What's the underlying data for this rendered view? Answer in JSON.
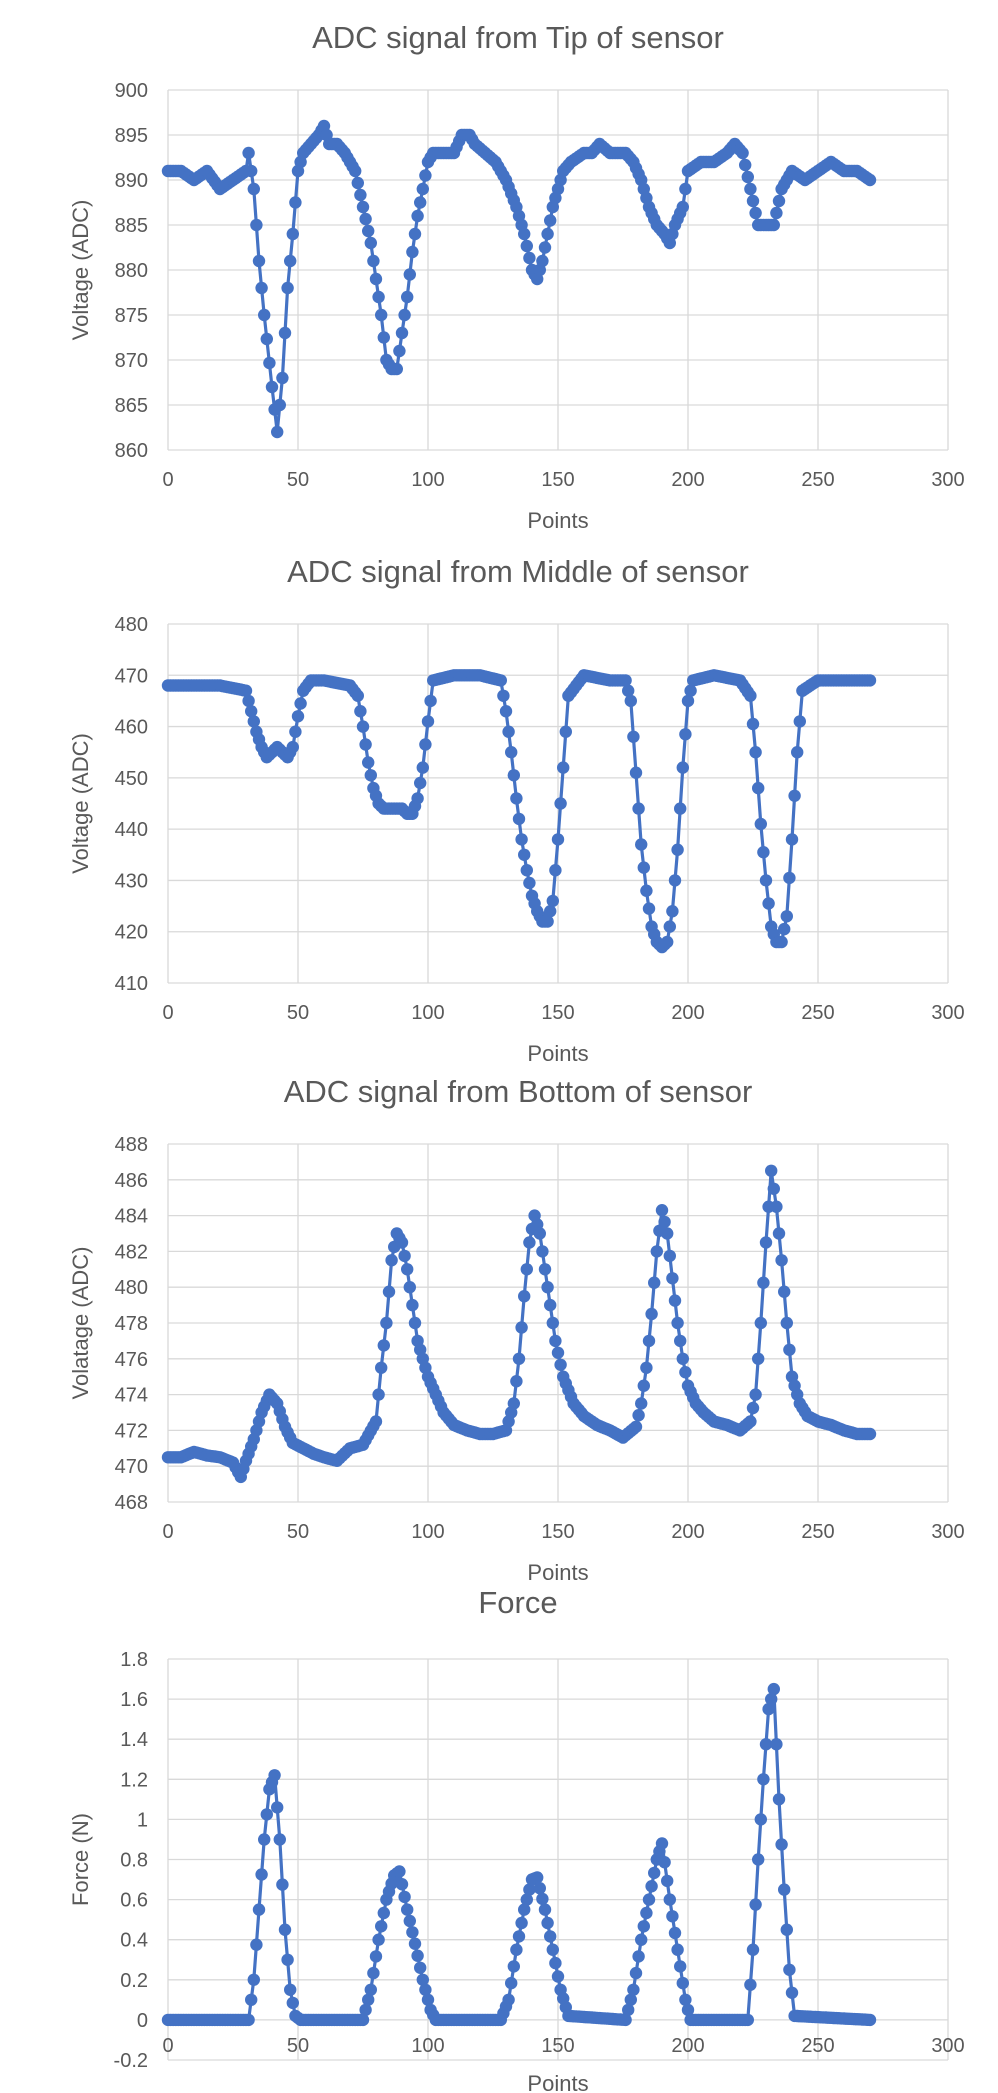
{
  "colors": {
    "series": "#4472C4",
    "grid": "#D9D9D9",
    "text": "#595959",
    "background": "#FFFFFF"
  },
  "chart_data": [
    {
      "type": "line",
      "title": "ADC signal from Tip of sensor",
      "xlabel": "Points",
      "ylabel": "Voltage (ADC)",
      "xlim": [
        0,
        300
      ],
      "ylim": [
        860,
        900
      ],
      "xticks": [
        "0",
        "50",
        "100",
        "150",
        "200",
        "250",
        "300"
      ],
      "yticks": [
        "860",
        "865",
        "870",
        "875",
        "880",
        "885",
        "890",
        "895",
        "900"
      ],
      "grid": true,
      "markers": true,
      "x_knots": [
        0,
        5,
        10,
        15,
        20,
        25,
        30,
        31,
        33,
        35,
        37,
        40,
        42,
        44,
        46,
        48,
        50,
        52,
        55,
        58,
        60,
        62,
        65,
        68,
        72,
        75,
        78,
        80,
        82,
        84,
        86,
        88,
        89,
        90,
        92,
        94,
        96,
        98,
        100,
        102,
        105,
        110,
        113,
        116,
        118,
        122,
        126,
        130,
        134,
        137,
        140,
        142,
        144,
        146,
        148,
        150,
        152,
        155,
        160,
        163,
        166,
        170,
        173,
        176,
        179,
        182,
        185,
        188,
        191,
        193,
        195,
        198,
        200,
        205,
        210,
        215,
        218,
        221,
        224,
        227,
        230,
        233,
        236,
        240,
        245,
        250,
        255,
        260,
        265,
        270
      ],
      "y_knots": [
        891,
        891,
        890,
        891,
        889,
        890,
        891,
        893,
        889,
        881,
        875,
        867,
        862,
        868,
        878,
        884,
        891,
        893,
        894,
        895,
        896,
        894,
        894,
        893,
        891,
        887,
        883,
        879,
        875,
        870,
        869,
        869,
        871,
        873,
        877,
        882,
        886,
        889,
        892,
        893,
        893,
        893,
        895,
        895,
        894,
        893,
        892,
        890,
        887,
        884,
        880,
        879,
        881,
        884,
        887,
        889,
        891,
        892,
        893,
        893,
        894,
        893,
        893,
        893,
        892,
        890,
        887,
        885,
        884,
        883,
        885,
        887,
        891,
        892,
        892,
        893,
        894,
        893,
        889,
        885,
        885,
        885,
        889,
        891,
        890,
        891,
        892,
        891,
        891,
        890
      ]
    },
    {
      "type": "line",
      "title": "ADC signal from Middle of sensor",
      "xlabel": "Points",
      "ylabel": "Voltage (ADC)",
      "xlim": [
        0,
        300
      ],
      "ylim": [
        410,
        480
      ],
      "xticks": [
        "0",
        "50",
        "100",
        "150",
        "200",
        "250",
        "300"
      ],
      "yticks": [
        "410",
        "420",
        "430",
        "440",
        "450",
        "460",
        "470",
        "480"
      ],
      "grid": true,
      "markers": true,
      "x_knots": [
        0,
        10,
        20,
        30,
        32,
        34,
        36,
        38,
        40,
        42,
        44,
        46,
        48,
        50,
        52,
        55,
        60,
        70,
        73,
        75,
        77,
        79,
        81,
        83,
        85,
        88,
        90,
        92,
        94,
        96,
        98,
        100,
        102,
        110,
        120,
        128,
        130,
        132,
        134,
        136,
        138,
        140,
        142,
        144,
        146,
        148,
        150,
        152,
        154,
        160,
        170,
        176,
        178,
        180,
        182,
        184,
        186,
        188,
        190,
        192,
        194,
        196,
        198,
        200,
        202,
        210,
        220,
        224,
        226,
        228,
        230,
        232,
        234,
        236,
        238,
        240,
        242,
        244,
        250,
        260,
        270
      ],
      "y_knots": [
        468,
        468,
        468,
        467,
        463,
        459,
        456,
        454,
        455,
        456,
        455,
        454,
        456,
        462,
        467,
        469,
        469,
        468,
        466,
        460,
        453,
        448,
        445,
        444,
        444,
        444,
        444,
        443,
        443,
        446,
        452,
        461,
        469,
        470,
        470,
        469,
        463,
        455,
        446,
        438,
        432,
        427,
        424,
        422,
        422,
        426,
        438,
        452,
        466,
        470,
        469,
        469,
        465,
        451,
        437,
        428,
        421,
        418,
        417,
        418,
        424,
        436,
        452,
        465,
        469,
        470,
        469,
        466,
        455,
        441,
        430,
        421,
        418,
        418,
        423,
        438,
        455,
        467,
        469,
        469,
        469
      ]
    },
    {
      "type": "line",
      "title": "ADC signal from Bottom of sensor",
      "xlabel": "Points",
      "ylabel": "Volatage (ADC)",
      "xlim": [
        0,
        300
      ],
      "ylim": [
        468,
        488
      ],
      "xticks": [
        "0",
        "50",
        "100",
        "150",
        "200",
        "250",
        "300"
      ],
      "yticks": [
        "468",
        "470",
        "472",
        "474",
        "476",
        "478",
        "480",
        "482",
        "484",
        "486",
        "488"
      ],
      "grid": true,
      "markers": true,
      "x_knots": [
        0,
        5,
        10,
        15,
        20,
        25,
        28,
        30,
        33,
        36,
        39,
        42,
        45,
        48,
        52,
        56,
        60,
        65,
        70,
        75,
        80,
        82,
        84,
        86,
        88,
        90,
        92,
        94,
        96,
        98,
        100,
        103,
        106,
        110,
        115,
        120,
        125,
        130,
        133,
        135,
        137,
        139,
        141,
        143,
        145,
        147,
        149,
        152,
        156,
        160,
        165,
        170,
        175,
        180,
        182,
        184,
        186,
        188,
        190,
        192,
        194,
        196,
        198,
        200,
        203,
        206,
        210,
        215,
        220,
        224,
        226,
        228,
        230,
        232,
        234,
        236,
        238,
        240,
        243,
        246,
        250,
        255,
        260,
        265,
        270
      ],
      "y_knots": [
        470.5,
        470.5,
        470.8,
        470.6,
        470.5,
        470.2,
        469.4,
        470.3,
        471.5,
        473.0,
        474.0,
        473.5,
        472.2,
        471.3,
        471.0,
        470.7,
        470.5,
        470.3,
        471.0,
        471.2,
        472.5,
        475.5,
        478.0,
        481.5,
        483.0,
        482.5,
        481.0,
        479.0,
        477.0,
        476.0,
        475.0,
        474.0,
        473.0,
        472.3,
        472.0,
        471.8,
        471.8,
        472.0,
        473.5,
        476.0,
        479.5,
        482.5,
        484.0,
        483.0,
        481.0,
        479.0,
        477.0,
        475.0,
        473.5,
        472.8,
        472.3,
        472.0,
        471.6,
        472.2,
        473.5,
        475.5,
        478.5,
        482.0,
        484.3,
        483.0,
        480.5,
        478.0,
        476.0,
        474.5,
        473.5,
        473.0,
        472.5,
        472.3,
        472.0,
        472.5,
        474.0,
        478.0,
        482.5,
        486.5,
        484.5,
        481.5,
        478.0,
        475.0,
        473.5,
        472.8,
        472.5,
        472.3,
        472.0,
        471.8,
        471.8
      ]
    },
    {
      "type": "line",
      "title": "Force",
      "xlabel": "Points",
      "ylabel": "Force (N)",
      "xlim": [
        0,
        300
      ],
      "ylim": [
        -0.2,
        1.8
      ],
      "xticks": [
        "0",
        "50",
        "100",
        "150",
        "200",
        "250",
        "300"
      ],
      "yticks": [
        "-0.2",
        "0",
        "0.2",
        "0.4",
        "0.6",
        "0.8",
        "1",
        "1.2",
        "1.4",
        "1.6",
        "1.8"
      ],
      "grid": true,
      "markers": true,
      "x_knots": [
        0,
        31,
        33,
        35,
        37,
        39,
        41,
        43,
        45,
        47,
        49,
        51,
        75,
        78,
        81,
        84,
        87,
        89,
        92,
        95,
        98,
        101,
        103,
        128,
        131,
        134,
        137,
        140,
        142,
        145,
        148,
        151,
        154,
        176,
        179,
        182,
        185,
        188,
        190,
        193,
        196,
        199,
        201,
        223,
        225,
        227,
        229,
        231,
        233,
        235,
        237,
        239,
        241,
        270
      ],
      "y_knots": [
        0,
        0,
        0.2,
        0.55,
        0.9,
        1.15,
        1.22,
        0.9,
        0.45,
        0.15,
        0.02,
        0,
        0,
        0.15,
        0.4,
        0.6,
        0.72,
        0.74,
        0.55,
        0.38,
        0.2,
        0.05,
        0,
        0,
        0.1,
        0.35,
        0.55,
        0.7,
        0.71,
        0.55,
        0.35,
        0.15,
        0.02,
        0,
        0.15,
        0.4,
        0.6,
        0.8,
        0.88,
        0.6,
        0.35,
        0.1,
        0,
        0,
        0.35,
        0.8,
        1.2,
        1.55,
        1.65,
        1.1,
        0.65,
        0.25,
        0.02,
        0
      ]
    }
  ]
}
